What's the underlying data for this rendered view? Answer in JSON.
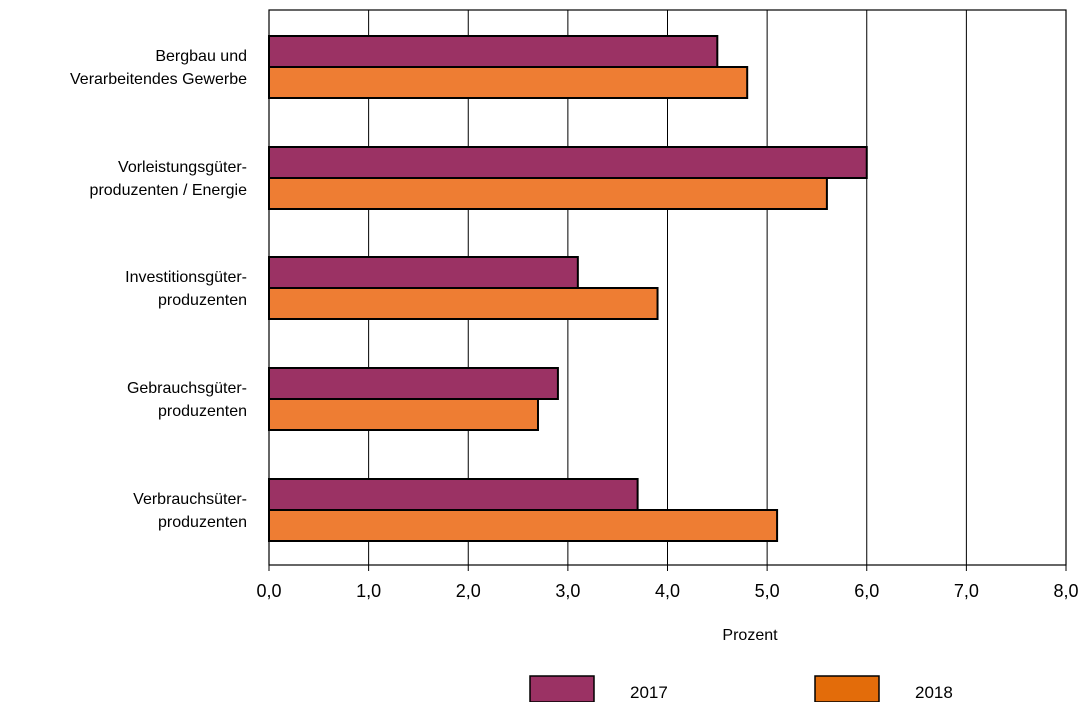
{
  "chart_data": {
    "type": "bar",
    "orientation": "horizontal",
    "categories": [
      [
        "Bergbau und",
        "Verarbeitendes Gewerbe"
      ],
      [
        "Vorleistungsgüter-",
        "produzenten /  Energie"
      ],
      [
        "Investitionsgüter-",
        "produzenten"
      ],
      [
        "Gebrauchsgüter-",
        "produzenten"
      ],
      [
        "Verbrauchsüter-",
        "produzenten"
      ]
    ],
    "series": [
      {
        "name": "2017",
        "color": "#9b3264",
        "values": [
          4.5,
          6.0,
          3.1,
          2.9,
          3.7
        ]
      },
      {
        "name": "2018",
        "color": "#ee7d33",
        "values": [
          4.8,
          5.6,
          3.9,
          2.7,
          5.1
        ]
      }
    ],
    "xlabel": "Prozent",
    "xlim": [
      0,
      8
    ],
    "xticks": [
      "0,0",
      "1,0",
      "2,0",
      "3,0",
      "4,0",
      "5,0",
      "6,0",
      "7,0",
      "8,0"
    ],
    "grid": "vertical",
    "legend": {
      "position": "bottom",
      "items": [
        {
          "label": "2017",
          "color": "#9b3264"
        },
        {
          "label": "2018",
          "color": "#e36c0a"
        }
      ]
    }
  }
}
